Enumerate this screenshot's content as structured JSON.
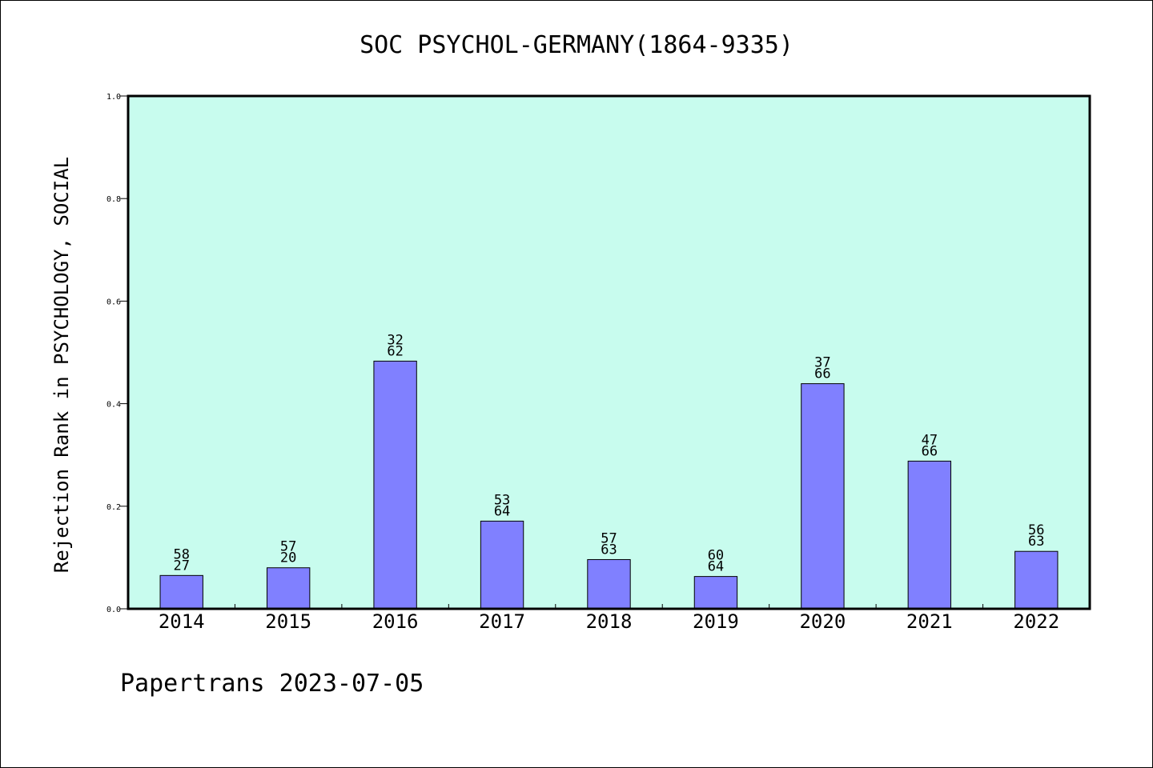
{
  "chart_data": {
    "type": "bar",
    "title": "SOC PSYCHOL-GERMANY(1864-9335)",
    "ylabel": "Rejection Rank in PSYCHOLOGY, SOCIAL",
    "xlabel": "",
    "ylim": [
      0,
      1.0
    ],
    "yticks": [
      "0.0",
      "0.2",
      "0.4",
      "0.6",
      "0.8",
      "1.0"
    ],
    "categories": [
      "2014",
      "2015",
      "2016",
      "2017",
      "2018",
      "2019",
      "2020",
      "2021",
      "2022"
    ],
    "values": [
      0.065,
      0.08,
      0.483,
      0.171,
      0.096,
      0.063,
      0.439,
      0.288,
      0.112
    ],
    "labels_top": [
      "58",
      "57",
      "32",
      "53",
      "57",
      "60",
      "37",
      "47",
      "56"
    ],
    "labels_bottom": [
      "27",
      "20",
      "62",
      "64",
      "63",
      "64",
      "66",
      "66",
      "63"
    ],
    "grid": false,
    "colors": {
      "plot_bg": "#c8fcee",
      "bar_fill": "#8080ff",
      "bar_edge": "#000000"
    }
  },
  "footer": "Papertrans 2023-07-05"
}
